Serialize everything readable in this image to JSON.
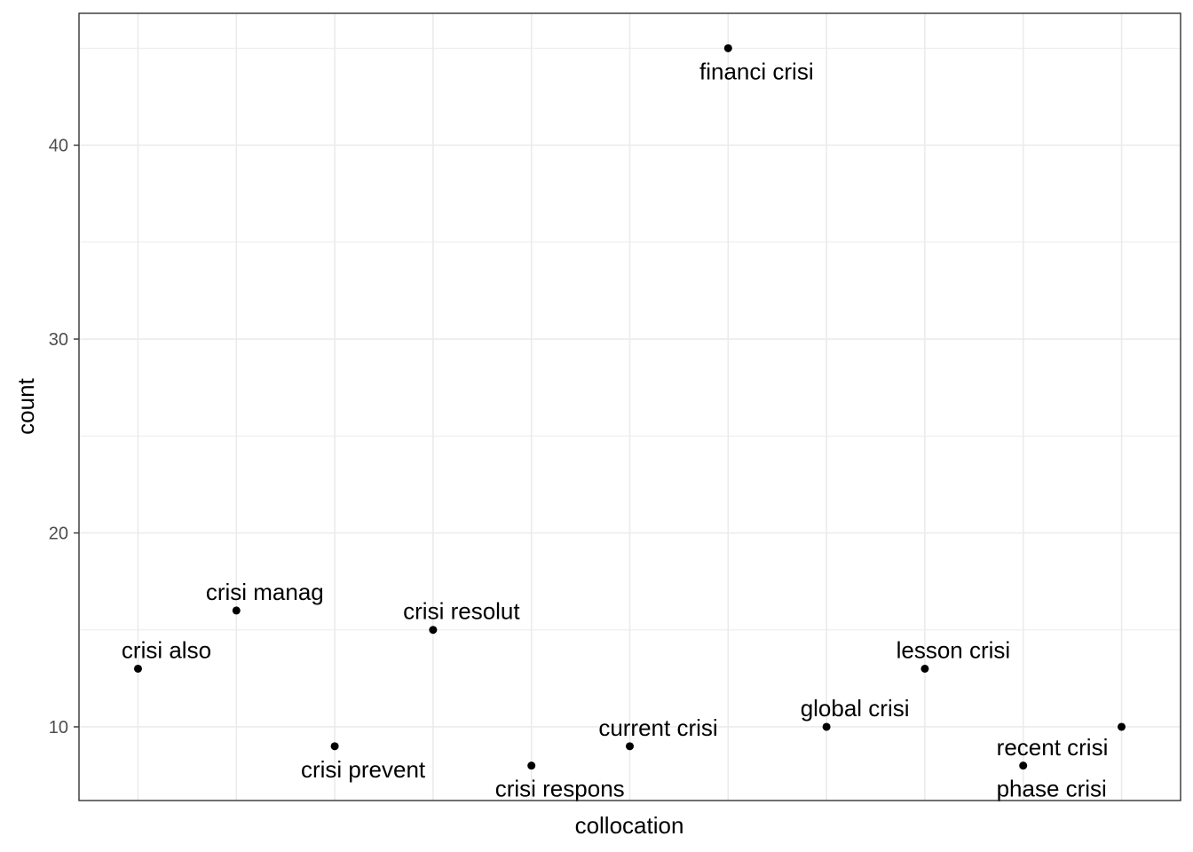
{
  "chart_data": {
    "type": "scatter",
    "xlabel": "collocation",
    "ylabel": "count",
    "ylim": [
      6.2,
      46.8
    ],
    "yticks": [
      10,
      20,
      30,
      40
    ],
    "grid": true,
    "legend": "none",
    "point_color": "#000000",
    "grid_color": "#ebebeb",
    "points": [
      {
        "label": "crisi also",
        "y": 13,
        "label_pos": "above"
      },
      {
        "label": "crisi manag",
        "y": 16,
        "label_pos": "above"
      },
      {
        "label": "crisi prevent",
        "y": 9,
        "label_pos": "below"
      },
      {
        "label": "crisi resolut",
        "y": 15,
        "label_pos": "above"
      },
      {
        "label": "crisi respons",
        "y": 8,
        "label_pos": "below"
      },
      {
        "label": "current crisi",
        "y": 9,
        "label_pos": "above"
      },
      {
        "label": "financi crisi",
        "y": 45,
        "label_pos": "below"
      },
      {
        "label": "global crisi",
        "y": 10,
        "label_pos": "above"
      },
      {
        "label": "lesson crisi",
        "y": 13,
        "label_pos": "above"
      },
      {
        "label": "phase crisi",
        "y": 8,
        "label_pos": "below"
      },
      {
        "label": "",
        "y": 10,
        "label_pos": "none"
      }
    ],
    "extra_labels": [
      {
        "label": "recent crisi",
        "attach_to": 10
      }
    ]
  }
}
